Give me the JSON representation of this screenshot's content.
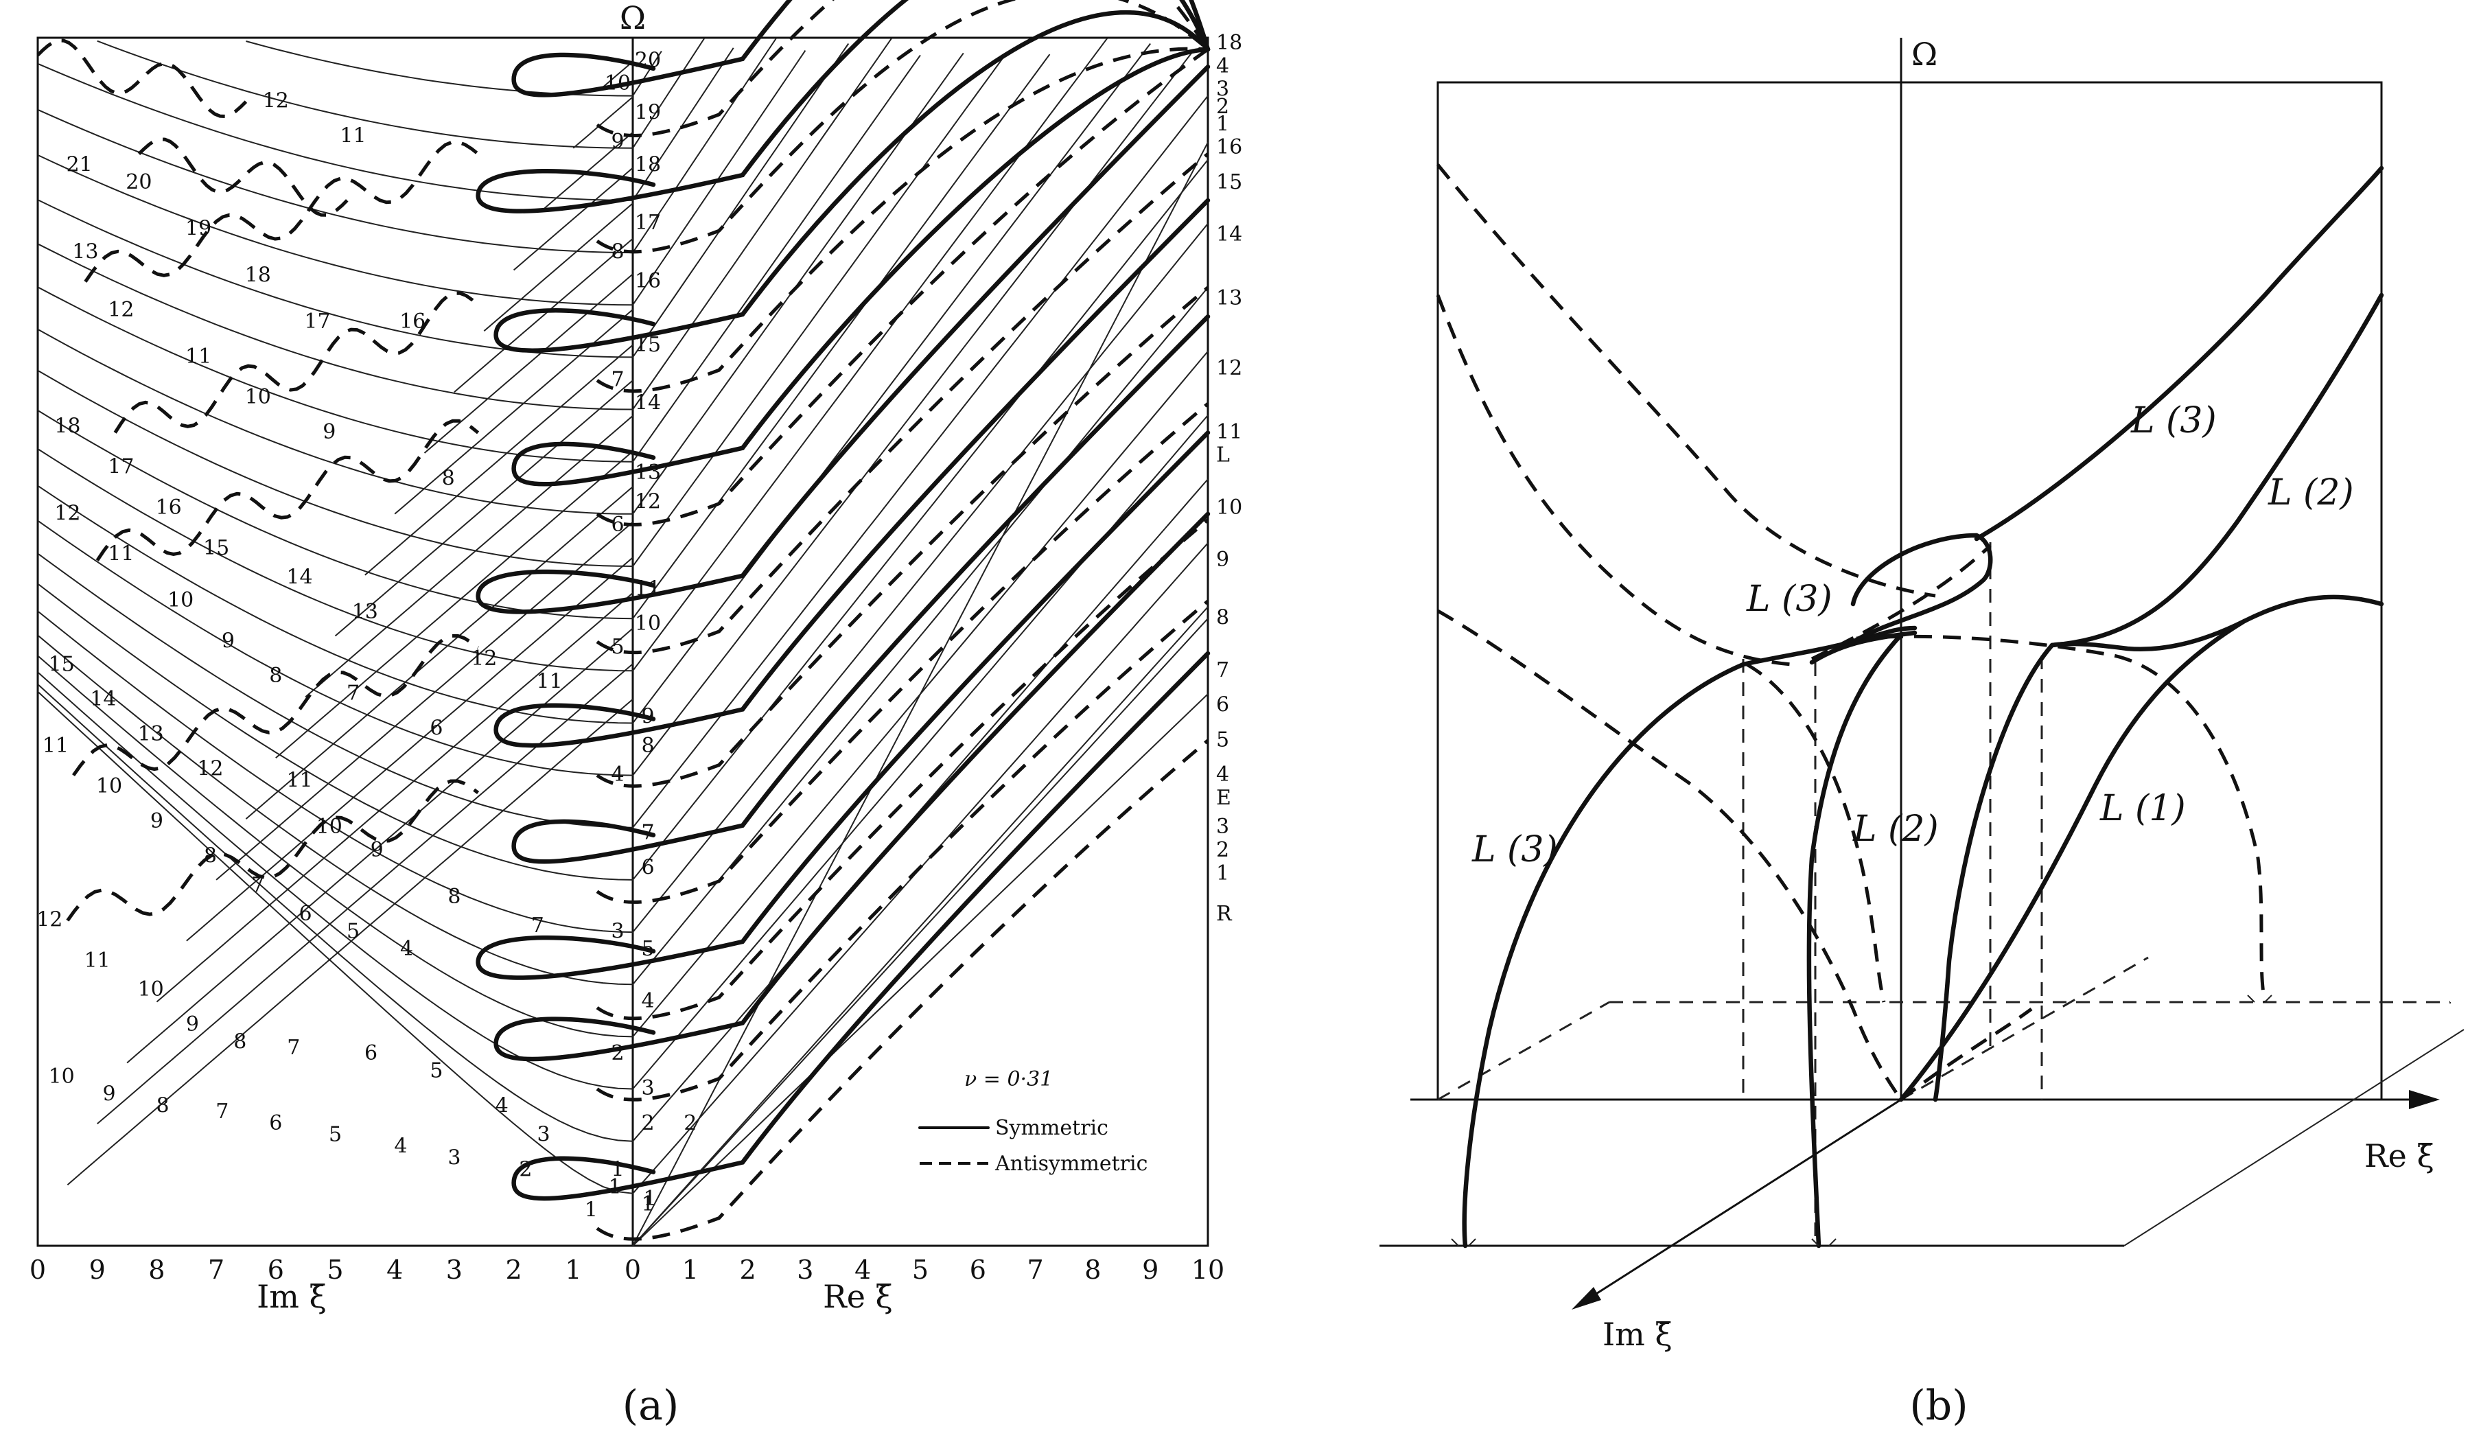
{
  "figure": {
    "panel_a_caption": "(a)",
    "panel_b_caption": "(b)"
  },
  "chart_data": [
    {
      "type": "line",
      "panel": "a",
      "ylabel": "Ω",
      "xlabel_left": "Im ξ̄",
      "xlabel_right": "Re ξ̄",
      "x_ticks_im": [
        "0",
        "9",
        "8",
        "7",
        "6",
        "5",
        "4",
        "3",
        "2",
        "1",
        "0"
      ],
      "x_ticks_re": [
        "1",
        "2",
        "3",
        "4",
        "5",
        "6",
        "7",
        "8",
        "9",
        "10"
      ],
      "xlim_im": [
        10,
        0
      ],
      "xlim_re": [
        0,
        10
      ],
      "annotation_nu": "ν = 0·31",
      "legend": {
        "placement": "bottom-right",
        "entries": [
          {
            "label": "Symmetric",
            "style": "solid"
          },
          {
            "label": "Antisymmetric",
            "style": "dashed"
          }
        ]
      },
      "axis_mode_labels": [
        "20",
        "10",
        "19",
        "9",
        "18",
        "17",
        "8",
        "16",
        "15",
        "7",
        "14",
        "13",
        "12",
        "6",
        "11",
        "10",
        "5",
        "9",
        "8",
        "4",
        "7",
        "6",
        "3",
        "5",
        "4",
        "2",
        "3",
        "2",
        "1",
        "1"
      ],
      "right_edge_labels": [
        "18",
        "4",
        "3",
        "2",
        "1",
        "16",
        "15",
        "14",
        "13",
        "12",
        "11",
        "L",
        "10",
        "9",
        "8",
        "7",
        "6",
        "5",
        "4",
        "E",
        "3",
        "2",
        "1",
        "R"
      ],
      "imag_branch_labels": [
        {
          "t": "12",
          "im": 6.0,
          "om": 19.6
        },
        {
          "t": "11",
          "im": 4.7,
          "om": 19.0
        },
        {
          "t": "21",
          "im": 9.3,
          "om": 18.5
        },
        {
          "t": "20",
          "im": 8.3,
          "om": 18.2
        },
        {
          "t": "19",
          "im": 7.3,
          "om": 17.4
        },
        {
          "t": "18",
          "im": 6.3,
          "om": 16.6
        },
        {
          "t": "17",
          "im": 5.3,
          "om": 15.8
        },
        {
          "t": "16",
          "im": 3.7,
          "om": 15.8
        },
        {
          "t": "13",
          "im": 9.2,
          "om": 17.0
        },
        {
          "t": "12",
          "im": 8.6,
          "om": 16.0
        },
        {
          "t": "11",
          "im": 7.3,
          "om": 15.2
        },
        {
          "t": "10",
          "im": 6.3,
          "om": 14.5
        },
        {
          "t": "9",
          "im": 5.1,
          "om": 13.9
        },
        {
          "t": "8",
          "im": 3.1,
          "om": 13.1
        },
        {
          "t": "18",
          "im": 9.5,
          "om": 14.0
        },
        {
          "t": "17",
          "im": 8.6,
          "om": 13.3
        },
        {
          "t": "16",
          "im": 7.8,
          "om": 12.6
        },
        {
          "t": "15",
          "im": 7.0,
          "om": 11.9
        },
        {
          "t": "14",
          "im": 5.6,
          "om": 11.4
        },
        {
          "t": "13",
          "im": 4.5,
          "om": 10.8
        },
        {
          "t": "12",
          "im": 2.5,
          "om": 10.0
        },
        {
          "t": "11",
          "im": 1.4,
          "om": 9.6
        },
        {
          "t": "12",
          "im": 9.5,
          "om": 12.5
        },
        {
          "t": "11",
          "im": 8.6,
          "om": 11.8
        },
        {
          "t": "10",
          "im": 7.6,
          "om": 11.0
        },
        {
          "t": "9",
          "im": 6.8,
          "om": 10.3
        },
        {
          "t": "8",
          "im": 6.0,
          "om": 9.7
        },
        {
          "t": "7",
          "im": 4.7,
          "om": 9.4
        },
        {
          "t": "6",
          "im": 3.3,
          "om": 8.8
        },
        {
          "t": "15",
          "im": 9.6,
          "om": 9.9
        },
        {
          "t": "14",
          "im": 8.9,
          "om": 9.3
        },
        {
          "t": "13",
          "im": 8.1,
          "om": 8.7
        },
        {
          "t": "12",
          "im": 7.1,
          "om": 8.1
        },
        {
          "t": "11",
          "im": 5.6,
          "om": 7.9
        },
        {
          "t": "10",
          "im": 5.1,
          "om": 7.1
        },
        {
          "t": "9",
          "im": 4.3,
          "om": 6.7
        },
        {
          "t": "11",
          "im": 9.7,
          "om": 8.5
        },
        {
          "t": "10",
          "im": 8.8,
          "om": 7.8
        },
        {
          "t": "9",
          "im": 8.0,
          "om": 7.2
        },
        {
          "t": "8",
          "im": 7.1,
          "om": 6.6
        },
        {
          "t": "7",
          "im": 6.3,
          "om": 6.1
        },
        {
          "t": "6",
          "im": 5.5,
          "om": 5.6
        },
        {
          "t": "5",
          "im": 4.7,
          "om": 5.3
        },
        {
          "t": "8",
          "im": 3.0,
          "om": 5.9
        },
        {
          "t": "4",
          "im": 3.8,
          "om": 5.0
        },
        {
          "t": "7",
          "im": 1.6,
          "om": 5.4
        },
        {
          "t": "12",
          "im": 9.8,
          "om": 5.5
        },
        {
          "t": "11",
          "im": 9.0,
          "om": 4.8
        },
        {
          "t": "10",
          "im": 8.1,
          "om": 4.3
        },
        {
          "t": "9",
          "im": 7.4,
          "om": 3.7
        },
        {
          "t": "8",
          "im": 6.6,
          "om": 3.4
        },
        {
          "t": "7",
          "im": 5.7,
          "om": 3.3
        },
        {
          "t": "6",
          "im": 4.4,
          "om": 3.2
        },
        {
          "t": "5",
          "im": 3.3,
          "om": 2.9
        },
        {
          "t": "4",
          "im": 2.2,
          "om": 2.3
        },
        {
          "t": "3",
          "im": 1.5,
          "om": 1.8
        },
        {
          "t": "10",
          "im": 9.6,
          "om": 2.8
        },
        {
          "t": "9",
          "im": 8.8,
          "om": 2.5
        },
        {
          "t": "8",
          "im": 7.9,
          "om": 2.3
        },
        {
          "t": "7",
          "im": 6.9,
          "om": 2.2
        },
        {
          "t": "6",
          "im": 6.0,
          "om": 2.0
        },
        {
          "t": "5",
          "im": 5.0,
          "om": 1.8
        },
        {
          "t": "4",
          "im": 3.9,
          "om": 1.6
        },
        {
          "t": "3",
          "im": 3.0,
          "om": 1.4
        },
        {
          "t": "2",
          "im": 1.8,
          "om": 1.2
        },
        {
          "t": "1",
          "im": 0.7,
          "om": 0.5
        },
        {
          "t": "1",
          "im": 0.3,
          "om": 0.9
        }
      ],
      "real_branch_labels": [
        {
          "t": "1",
          "re": 0.3,
          "om": 0.7
        },
        {
          "t": "2",
          "re": 1.0,
          "om": 2.0
        }
      ]
    },
    {
      "type": "line",
      "panel": "b",
      "ylabel": "Ω",
      "xlabel_re": "Re ξ̄",
      "xlabel_im": "Im ξ̄",
      "curve_labels": [
        "L (3)",
        "L (2)",
        "L (3)",
        "L (3)",
        "L (2)",
        "L (1)"
      ]
    }
  ]
}
